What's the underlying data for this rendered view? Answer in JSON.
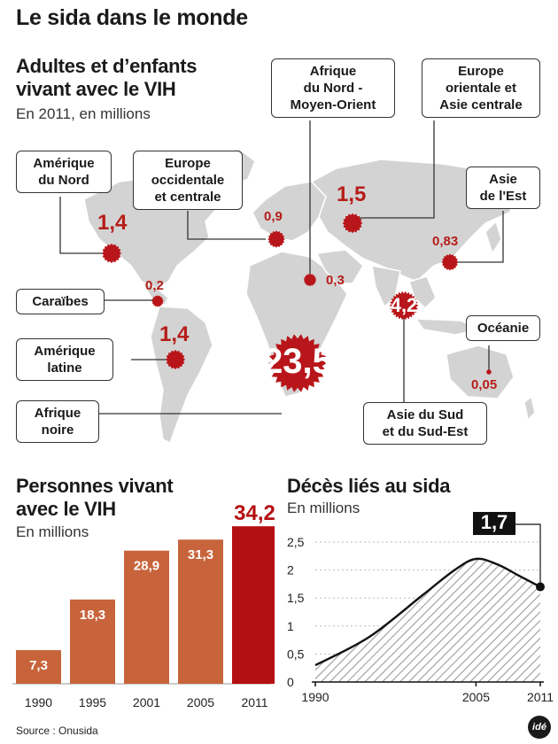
{
  "title": "Le sida dans le monde",
  "map": {
    "title_line1": "Adultes et d’enfants",
    "title_line2": "vivant avec le VIH",
    "subtitle": "En 2011, en millions",
    "regions": [
      {
        "name_l1": "Amérique",
        "name_l2": "du Nord",
        "value": "1,4"
      },
      {
        "name_l1": "Europe",
        "name_l2": "occidentale",
        "name_l3": "et centrale",
        "value": "0,9"
      },
      {
        "name_l1": "Afrique",
        "name_l2": "du Nord -",
        "name_l3": "Moyen-Orient",
        "value": "0,3"
      },
      {
        "name_l1": "Europe",
        "name_l2": "orientale et",
        "name_l3": "Asie centrale",
        "value": "1,5"
      },
      {
        "name_l1": "Asie",
        "name_l2": "de l'Est",
        "value": "0,83"
      },
      {
        "name_l1": "Caraïbes",
        "value": "0,2"
      },
      {
        "name_l1": "Amérique",
        "name_l2": "latine",
        "value": "1,4"
      },
      {
        "name_l1": "Océanie",
        "value": "0,05"
      },
      {
        "name_l1": "Afrique",
        "name_l2": "noire",
        "value": "23,5"
      },
      {
        "name_l1": "Asie du Sud",
        "name_l2": "et du Sud-Est",
        "value": "4,2"
      }
    ]
  },
  "chart_data": [
    {
      "type": "bar",
      "title": "Personnes vivant avec le VIH",
      "title_line1": "Personnes vivant",
      "title_line2": "avec le VIH",
      "subtitle": "En millions",
      "categories": [
        "1990",
        "1995",
        "2001",
        "2005",
        "2011"
      ],
      "values": [
        7.3,
        18.3,
        28.9,
        31.3,
        34.2
      ],
      "value_labels": [
        "7,3",
        "18,3",
        "28,9",
        "31,3",
        "34,2"
      ],
      "colors": [
        "#c8643c",
        "#c8643c",
        "#c8643c",
        "#c8643c",
        "#b40f12"
      ]
    },
    {
      "type": "area",
      "title": "Décès liés au sida",
      "subtitle": "En millions",
      "x_ticks": [
        "1990",
        "2005",
        "2011"
      ],
      "y_ticks": [
        "0",
        "0,5",
        "1",
        "1,5",
        "2",
        "2,5"
      ],
      "ylim": [
        0,
        2.5
      ],
      "xlim": [
        1990,
        2011
      ],
      "x": [
        1990,
        1995,
        2000,
        2003,
        2005,
        2007,
        2009,
        2011
      ],
      "y": [
        0.3,
        0.8,
        1.55,
        2.0,
        2.2,
        2.1,
        1.9,
        1.7
      ],
      "highlight": {
        "x": 2011,
        "label": "1,7"
      }
    }
  ],
  "source": "Source : Onusida",
  "logo": "idé"
}
